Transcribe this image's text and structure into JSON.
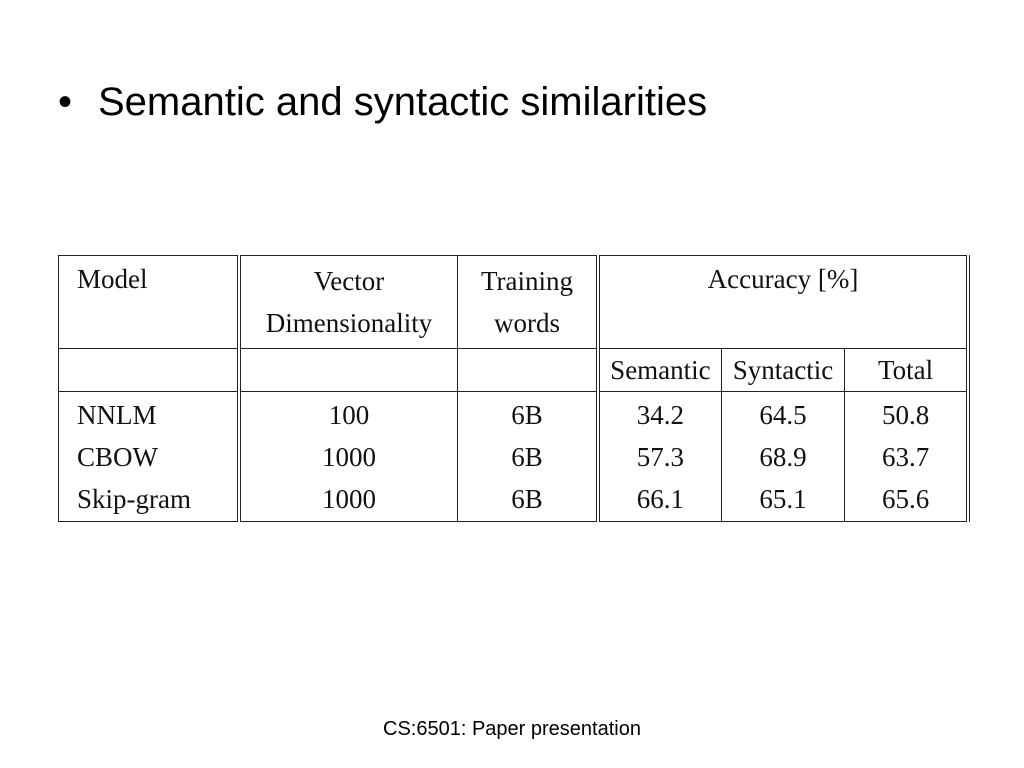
{
  "slide": {
    "bullet_symbol": "•",
    "bullet_text": "Semantic and syntactic similarities",
    "footer": "CS:6501: Paper presentation"
  },
  "table": {
    "headers": {
      "model": "Model",
      "dimensionality_line1": "Vector",
      "dimensionality_line2": "Dimensionality",
      "training_line1": "Training",
      "training_line2": "words",
      "accuracy": "Accuracy [%]",
      "semantic": "Semantic",
      "syntactic": "Syntactic",
      "total": "Total"
    },
    "rows": [
      {
        "model": "NNLM",
        "dim": "100",
        "train": "6B",
        "semantic": "34.2",
        "syntactic": "64.5",
        "total": "50.8"
      },
      {
        "model": "CBOW",
        "dim": "1000",
        "train": "6B",
        "semantic": "57.3",
        "syntactic": "68.9",
        "total": "63.7"
      },
      {
        "model": "Skip-gram",
        "dim": "1000",
        "train": "6B",
        "semantic": "66.1",
        "syntactic": "65.1",
        "total": "65.6"
      }
    ]
  }
}
